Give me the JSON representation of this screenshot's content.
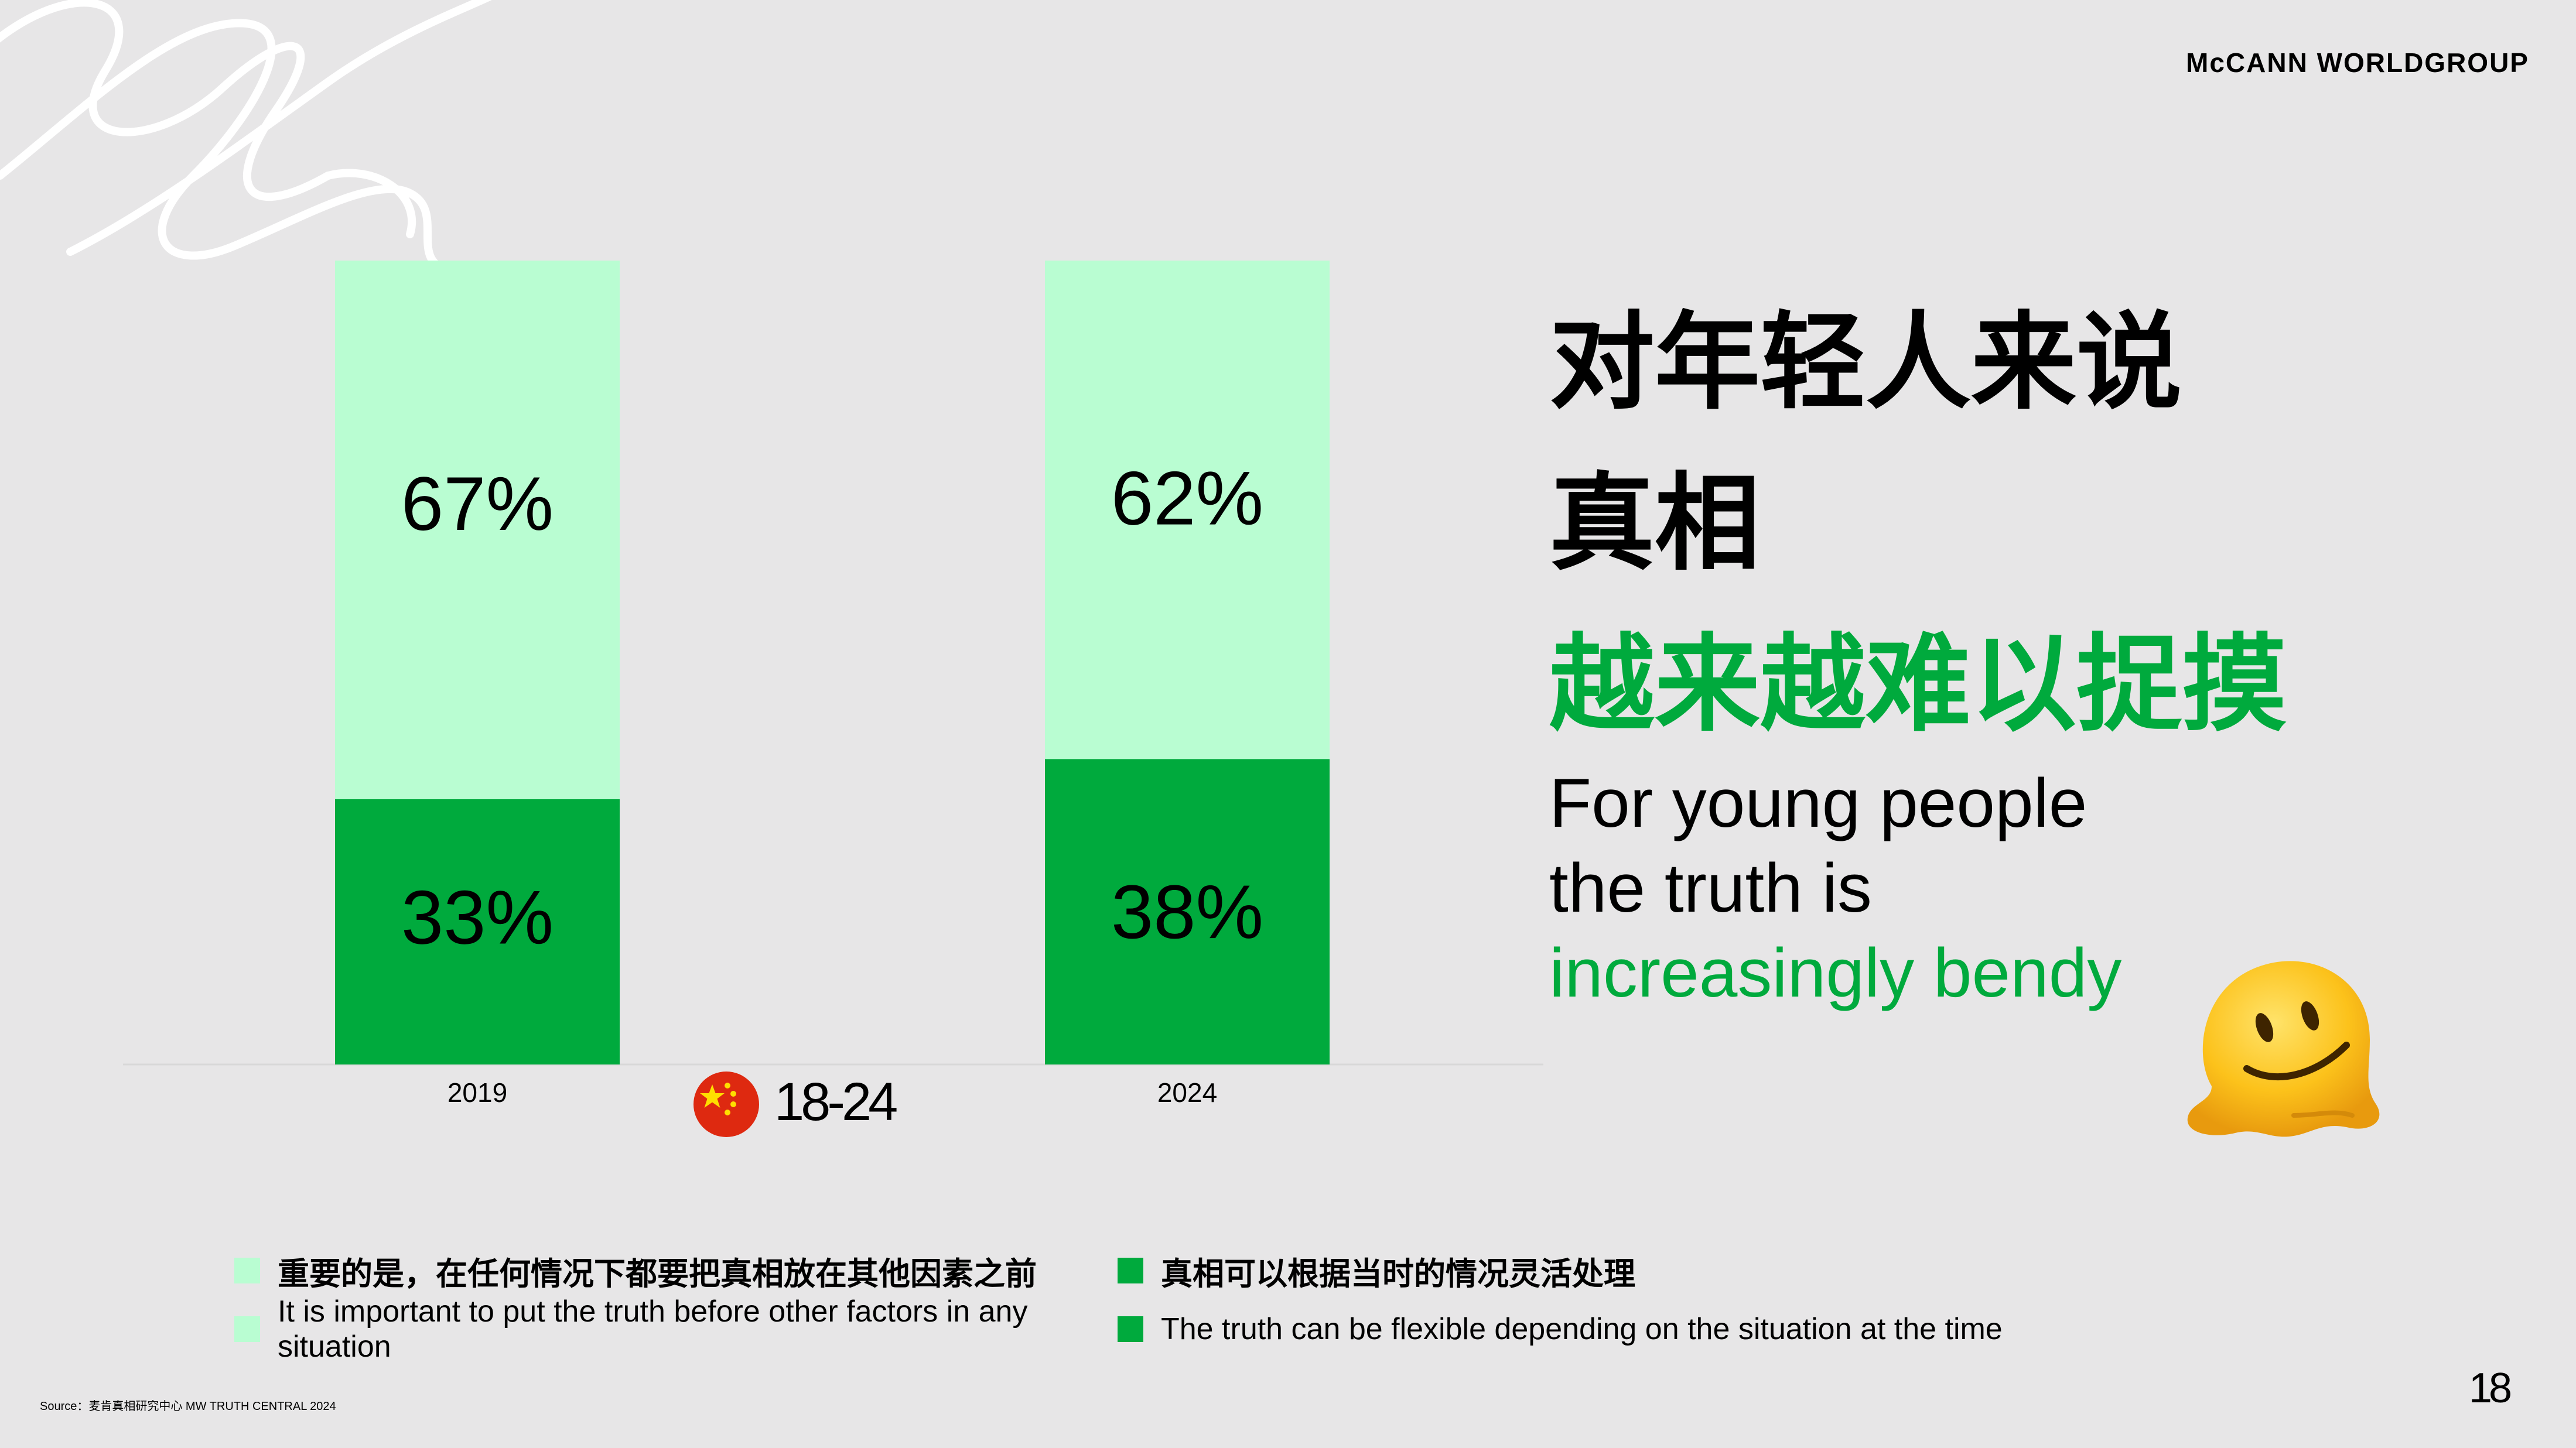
{
  "brand": "McCANN WORLDGROUP",
  "age_group": "18-24",
  "headline": {
    "cn_line1": "对年轻人来说",
    "cn_line2": "真相",
    "cn_line3": "越来越难以捉摸",
    "en_line1": "For young people",
    "en_line2": "the truth is",
    "en_line3": "increasingly bendy"
  },
  "legend": {
    "light_cn": "重要的是，在任何情况下都要把真相放在其他因素之前",
    "dark_cn": "真相可以根据当时的情况灵活处理",
    "light_en": "It is important to put the truth before other factors in any situation",
    "dark_en": "The truth can be flexible depending on the situation at the time"
  },
  "source": "Source：麦肯真相研究中心 MW TRUTH CENTRAL 2024",
  "page_number": "18",
  "colors": {
    "background": "#e7e6e7",
    "light_green": "#b9fdd2",
    "dark_green": "#00aa3d"
  },
  "icons": [
    "china-flag-icon",
    "melting-face-emoji-icon",
    "swirl-decoration"
  ],
  "chart_data": {
    "type": "bar",
    "stacked": true,
    "categories": [
      "2019",
      "2024"
    ],
    "series": [
      {
        "name": "The truth can be flexible depending on the situation at the time",
        "values": [
          33,
          38
        ],
        "color": "#00aa3d"
      },
      {
        "name": "It is important to put the truth before other factors in any situation",
        "values": [
          67,
          62
        ],
        "color": "#b9fdd2"
      }
    ],
    "labels": [
      {
        "bottom": "33%",
        "top": "67%"
      },
      {
        "bottom": "38%",
        "top": "62%"
      }
    ],
    "ylim": [
      0,
      100
    ],
    "grid": false,
    "legend_position": "bottom"
  }
}
